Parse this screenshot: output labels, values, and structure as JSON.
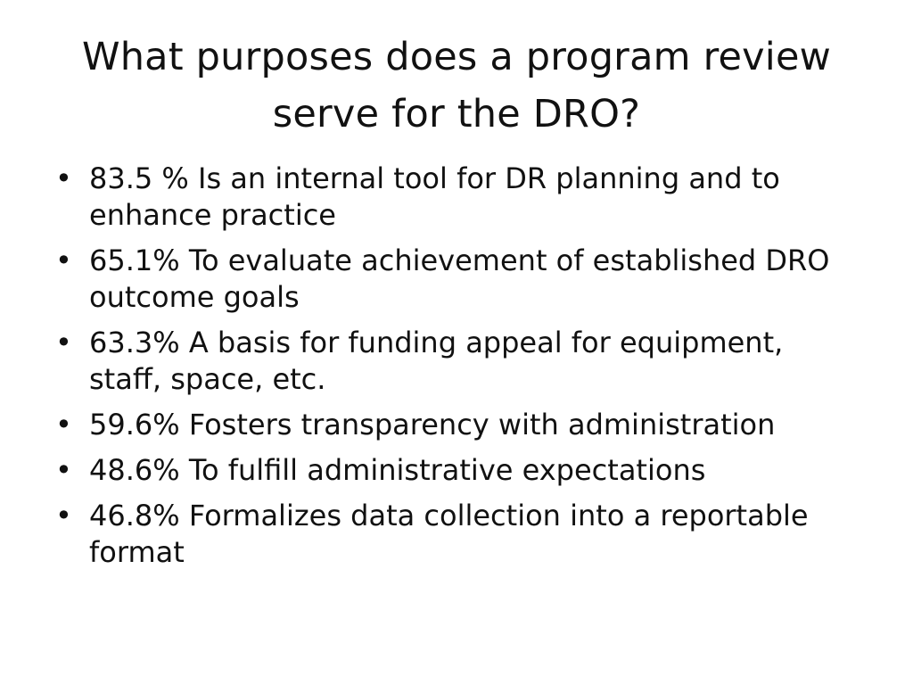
{
  "slide": {
    "title": "What purposes does a program review serve for the DRO?",
    "bullet_glyph": "•",
    "bullets": [
      "83.5 % Is an internal tool for DR  planning and to enhance practice",
      "65.1% To evaluate achievement of established DRO outcome goals",
      "63.3% A basis for funding appeal for equipment, staff, space, etc.",
      "59.6% Fosters transparency with administration",
      "48.6% To fulfill administrative expectations",
      "46.8% Formalizes data collection into a reportable format"
    ]
  }
}
